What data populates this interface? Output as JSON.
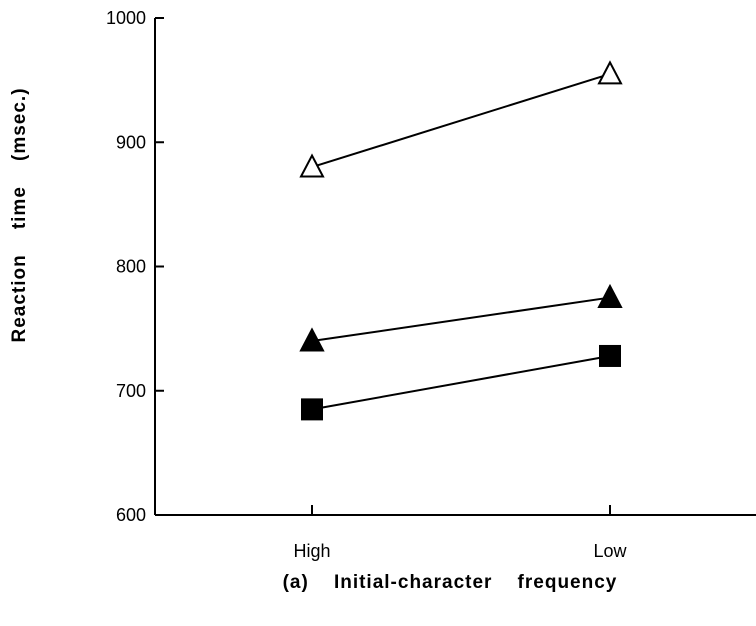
{
  "chart_data": {
    "type": "line",
    "xlabel": "(a)    Initial-character    frequency",
    "ylabel": "Reaction    time    (msec.)",
    "categories": [
      "High",
      "Low"
    ],
    "ylim": [
      600,
      1000
    ],
    "yticks": [
      600,
      700,
      800,
      900,
      1000
    ],
    "grid": false,
    "series": [
      {
        "marker": "triangle-open",
        "values": [
          880,
          955
        ]
      },
      {
        "marker": "triangle-filled",
        "values": [
          740,
          775
        ]
      },
      {
        "marker": "square-filled",
        "values": [
          685,
          728
        ]
      }
    ],
    "colors": {
      "ink": "#000000",
      "background": "#ffffff"
    }
  }
}
